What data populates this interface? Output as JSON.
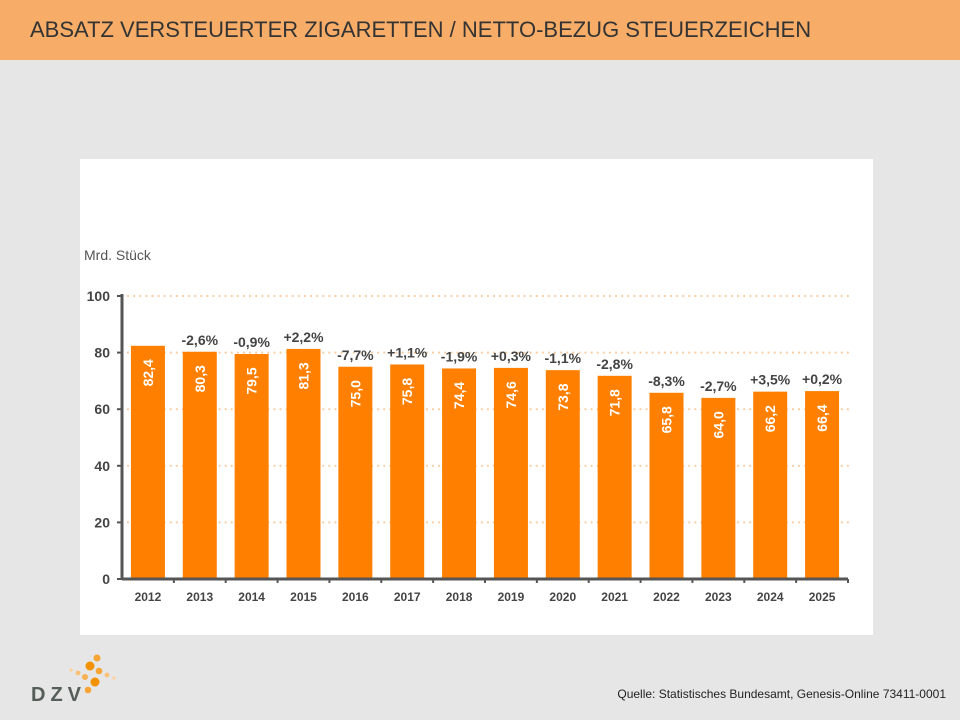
{
  "header": {
    "title": "ABSATZ VERSTEUERTER ZIGARETTEN / NETTO-BEZUG STEUERZEICHEN"
  },
  "footer": {
    "source": "Quelle: Statistisches Bundesamt, Genesis-Online 73411-0001",
    "logo_text": "DZV"
  },
  "colors": {
    "bar": "#ff7f00",
    "header": "#f7ad67",
    "grid": "#f8cfa5",
    "axis": "#555555",
    "text": "#444444"
  },
  "chart_data": {
    "type": "bar",
    "title": "ABSATZ VERSTEUERTER ZIGARETTEN / NETTO-BEZUG STEUERZEICHEN",
    "ylabel": "Mrd. Stück",
    "xlabel": "",
    "ylim": [
      0,
      100
    ],
    "yticks": [
      0,
      20,
      40,
      60,
      80,
      100
    ],
    "grid": true,
    "categories": [
      "2012",
      "2013",
      "2014",
      "2015",
      "2016",
      "2017",
      "2018",
      "2019",
      "2020",
      "2021",
      "2022",
      "2023",
      "2024",
      "2025"
    ],
    "values": [
      82.4,
      80.3,
      79.5,
      81.3,
      75.0,
      75.8,
      74.4,
      74.6,
      73.8,
      71.8,
      65.8,
      64.0,
      66.2,
      66.4
    ],
    "value_labels": [
      "82,4",
      "80,3",
      "79,5",
      "81,3",
      "75,0",
      "75,8",
      "74,4",
      "74,6",
      "73,8",
      "71,8",
      "65,8",
      "64,0",
      "66,2",
      "66,4"
    ],
    "change_labels": [
      "",
      "-2,6%",
      "-0,9%",
      "+2,2%",
      "-7,7%",
      "+1,1%",
      "-1,9%",
      "+0,3%",
      "-1,1%",
      "-2,8%",
      "-8,3%",
      "-2,7%",
      "+3,5%",
      "+0,2%"
    ]
  }
}
